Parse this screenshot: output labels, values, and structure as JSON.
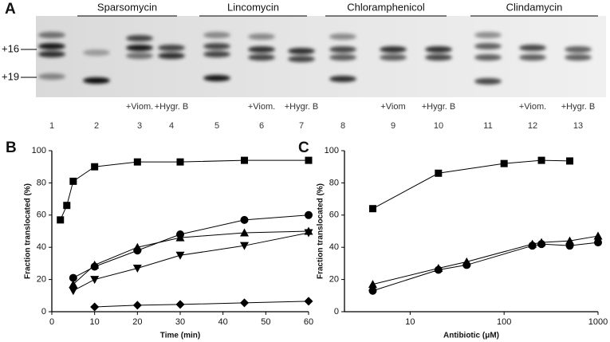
{
  "gel": {
    "panel_label": "A",
    "groups": [
      "Sparsomycin",
      "Lincomycin",
      "Chloramphenicol",
      "Clindamycin"
    ],
    "markers": [
      "+16",
      "+19"
    ],
    "treatments": [
      null,
      null,
      "+Viom.",
      "+Hygr. B",
      null,
      "+Viom.",
      "+Hygr. B",
      null,
      "+Viom",
      "+Hygr. B",
      null,
      "+Viom.",
      "+Hygr. B"
    ],
    "lanes": [
      "1",
      "2",
      "3",
      "4",
      "5",
      "6",
      "7",
      "8",
      "9",
      "10",
      "11",
      "12",
      "13"
    ]
  },
  "chart_data": [
    {
      "type": "line",
      "panel_label": "B",
      "x_label": "Time (min)",
      "y_label": "Fraction translocated (%)",
      "xlim": [
        0,
        60
      ],
      "ylim": [
        0,
        100
      ],
      "xticks": [
        0,
        10,
        20,
        30,
        40,
        50,
        60
      ],
      "yticks": [
        0,
        20,
        40,
        60,
        80,
        100
      ],
      "series": [
        {
          "color": "#000000",
          "marker": "square",
          "x": [
            2,
            3.5,
            5,
            10,
            20,
            30,
            45,
            60
          ],
          "values": [
            57,
            66,
            81,
            90,
            93,
            93,
            94,
            94
          ]
        },
        {
          "color": "#000000",
          "marker": "circle",
          "x": [
            5,
            10,
            20,
            30,
            45,
            60
          ],
          "values": [
            21,
            28,
            38,
            48,
            57,
            60
          ]
        },
        {
          "color": "#000000",
          "marker": "triangle-up",
          "x": [
            5,
            10,
            20,
            30,
            45,
            60
          ],
          "values": [
            17,
            29,
            40,
            46,
            49,
            50
          ]
        },
        {
          "color": "#000000",
          "marker": "triangle-down",
          "x": [
            5,
            10,
            20,
            30,
            45,
            60
          ],
          "values": [
            13,
            20,
            27,
            35,
            41,
            49
          ]
        },
        {
          "color": "#000000",
          "marker": "diamond",
          "x": [
            10,
            20,
            30,
            45,
            60
          ],
          "values": [
            3,
            4,
            4.5,
            5.5,
            6.5
          ]
        }
      ]
    },
    {
      "type": "line",
      "panel_label": "C",
      "x_label": "Antibiotic (μM)",
      "y_label": "Fraction translocated (%)",
      "log_x": true,
      "xlim": [
        2,
        1000
      ],
      "ylim": [
        0,
        100
      ],
      "xticks": [
        10,
        100,
        1000
      ],
      "yticks": [
        0,
        20,
        40,
        60,
        80,
        100
      ],
      "series": [
        {
          "color": "#000000",
          "marker": "square",
          "x": [
            4,
            20,
            100,
            250,
            500
          ],
          "values": [
            64,
            86,
            92,
            94,
            93.6
          ]
        },
        {
          "color": "#000000",
          "marker": "triangle-up",
          "x": [
            4,
            20,
            40,
            200,
            250,
            500,
            1000
          ],
          "values": [
            17,
            27,
            31,
            42,
            43,
            44,
            47
          ]
        },
        {
          "color": "#000000",
          "marker": "circle",
          "x": [
            4,
            20,
            40,
            200,
            250,
            500,
            1000
          ],
          "values": [
            13,
            26,
            29,
            41,
            42,
            41,
            43
          ]
        }
      ]
    }
  ]
}
